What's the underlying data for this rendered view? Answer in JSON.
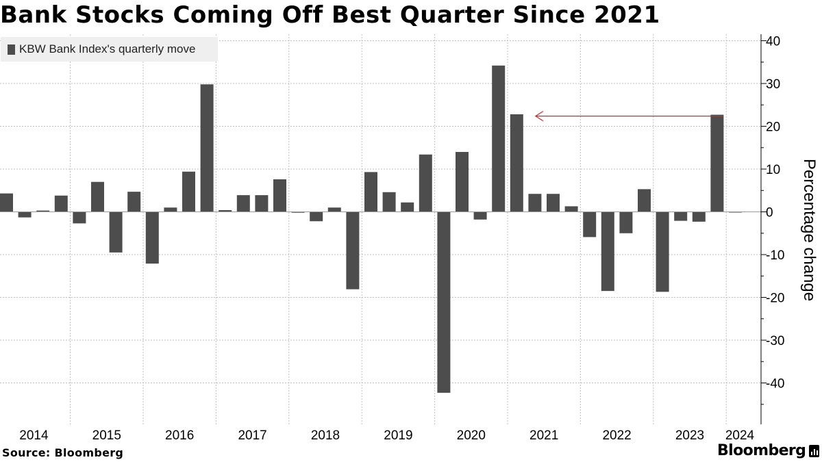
{
  "chart_data": {
    "type": "bar",
    "title": "Bank Stocks Coming Off Best Quarter Since 2021",
    "legend": [
      "KBW Bank Index's quarterly move"
    ],
    "legend_position": "top-left",
    "ylabel": "Percentage change",
    "xlabel": "",
    "ylim": [
      -50,
      42
    ],
    "yticks": [
      -40,
      -30,
      -20,
      -10,
      0,
      10,
      20,
      30,
      40
    ],
    "year_labels": [
      "2014",
      "2015",
      "2016",
      "2017",
      "2018",
      "2019",
      "2020",
      "2021",
      "2022",
      "2023",
      "2024"
    ],
    "categories": [
      "2014 Q1",
      "2014 Q2",
      "2014 Q3",
      "2014 Q4",
      "2015 Q1",
      "2015 Q2",
      "2015 Q3",
      "2015 Q4",
      "2016 Q1",
      "2016 Q2",
      "2016 Q3",
      "2016 Q4",
      "2017 Q1",
      "2017 Q2",
      "2017 Q3",
      "2017 Q4",
      "2018 Q1",
      "2018 Q2",
      "2018 Q3",
      "2018 Q4",
      "2019 Q1",
      "2019 Q2",
      "2019 Q3",
      "2019 Q4",
      "2020 Q1",
      "2020 Q2",
      "2020 Q3",
      "2020 Q4",
      "2021 Q1",
      "2021 Q2",
      "2021 Q3",
      "2021 Q4",
      "2022 Q1",
      "2022 Q2",
      "2022 Q3",
      "2022 Q4",
      "2023 Q1",
      "2023 Q2",
      "2023 Q3",
      "2023 Q4",
      "2024 Q1"
    ],
    "series": [
      {
        "name": "KBW Bank Index's quarterly move",
        "color": "#4d4d4d",
        "values": [
          4.3,
          -1.3,
          0.3,
          3.8,
          -2.7,
          7.0,
          -9.5,
          4.7,
          -12.1,
          1.0,
          9.4,
          29.8,
          0.4,
          3.9,
          3.9,
          7.6,
          -0.2,
          -2.2,
          1.0,
          -18.1,
          9.3,
          4.6,
          2.2,
          13.4,
          -42.3,
          14.0,
          -1.8,
          34.2,
          22.8,
          4.2,
          4.2,
          1.3,
          -5.9,
          -18.5,
          -5.0,
          5.3,
          -18.7,
          -2.1,
          -2.3,
          22.7,
          -0.1
        ]
      }
    ],
    "annotations": [
      {
        "type": "arrow",
        "from": "2023 Q4",
        "to": "2021 Q1",
        "value": 22.7,
        "color": "#d62728"
      }
    ]
  },
  "footer": {
    "source": "Source: Bloomberg",
    "brand": "Bloomberg"
  },
  "colors": {
    "bar": "#4d4d4d",
    "grid": "#bfbfbf",
    "arrow": "#d62728",
    "legend_bg": "#efefef"
  }
}
